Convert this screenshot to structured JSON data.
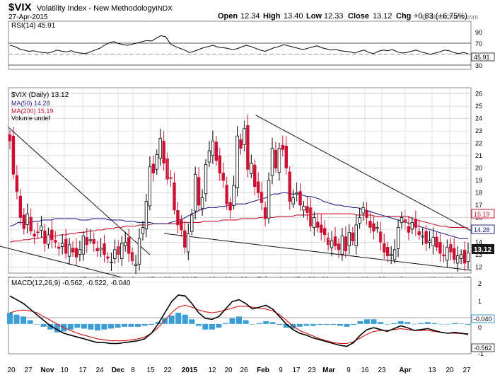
{
  "header": {
    "symbol": "$VIX",
    "name": "Volatility Index - New Methodology",
    "exchange": "INDX",
    "date": "27-Apr-2015",
    "watermark": "@ StockCharts.com",
    "ohlc": {
      "open_label": "Open",
      "open": "12.34",
      "high_label": "High",
      "high": "13.40",
      "low_label": "Low",
      "low": "12.33",
      "close_label": "Close",
      "close": "13.12",
      "chg_label": "Chg",
      "chg": "+0.83 (+6.75%)"
    }
  },
  "rsi": {
    "label": "RSI(14) 45.91",
    "value_tag": "45.91",
    "ticks": [
      "90",
      "70",
      "50",
      "30"
    ]
  },
  "price": {
    "legend": {
      "symbol": "$VIX (Daily) 13.12",
      "ma50": "MA(50) 14.28",
      "ma200": "MA(200) 15.19",
      "volume": "Volume undef"
    },
    "value_tags": {
      "ma200": "15.19",
      "ma50": "14.28",
      "close": "13.12"
    },
    "y_ticks": [
      "26",
      "25",
      "24",
      "23",
      "22",
      "21",
      "20",
      "19",
      "18",
      "17",
      "16",
      "15",
      "14",
      "13",
      "12"
    ]
  },
  "x_axis": {
    "labels": [
      "20",
      "27",
      "Nov",
      "10",
      "17",
      "24",
      "Dec",
      "8",
      "15",
      "22",
      "2015",
      "12",
      "20",
      "26",
      "Feb",
      "9",
      "17",
      "23",
      "Mar",
      "9",
      "16",
      "23",
      "Apr",
      "13",
      "20",
      "27"
    ]
  },
  "macd": {
    "label": "MACD(12,26,9) -0.562, -0.522, -0.040",
    "value_tags": {
      "hist": "-0.040",
      "macd": "-0.562"
    },
    "ticks": [
      "2",
      "1",
      "0",
      "-1"
    ]
  },
  "colors": {
    "up": "#ffffff",
    "down": "#cc1133",
    "ma50": "#22228a",
    "ma200": "#c8102e",
    "macd_line": "#000000",
    "signal_line": "#d01010",
    "histogram": "#3a9fd6",
    "close_tag": "#1a1a1a",
    "grid": "#c8c8c8"
  },
  "chart_data": [
    {
      "type": "candlestick",
      "title": "$VIX (Daily)",
      "ylim": [
        11.5,
        26.5
      ],
      "series": [
        {
          "name": "$VIX",
          "values": [
            22.2,
            19.5,
            18.1,
            16.0,
            15.1,
            16.3,
            14.9,
            14.5,
            14.8,
            15.3,
            13.9,
            14.6,
            14.2,
            14.0,
            13.5,
            13.9,
            13.1,
            13.8,
            13.2,
            12.8,
            13.4,
            14.5,
            13.8,
            14.2,
            13.9,
            13.3,
            13.5,
            13.0,
            12.7,
            12.4,
            13.4,
            13.0,
            13.9,
            14.0,
            13.1,
            12.5,
            12.2,
            14.3,
            15.2,
            17.3,
            20.1,
            19.6,
            21.1,
            22.4,
            20.4,
            19.1,
            19.2,
            16.6,
            15.4,
            15.0,
            13.6,
            14.7,
            16.2,
            19.5,
            17.0,
            17.6,
            20.3,
            21.4,
            22.2,
            20.6,
            19.6,
            19.0,
            17.1,
            16.6,
            18.6,
            22.6,
            21.6,
            23.2,
            19.9,
            20.4,
            18.5,
            18.0,
            17.2,
            15.9,
            19.0,
            21.6,
            20.0,
            21.6,
            21.5,
            20.0,
            17.3,
            17.6,
            18.0,
            17.0,
            16.9,
            16.4,
            15.3,
            16.0,
            15.2,
            14.8,
            14.6,
            13.8,
            14.1,
            13.7,
            13.4,
            14.5,
            13.3,
            14.8,
            14.1,
            15.4,
            16.0,
            16.8,
            16.0,
            15.2,
            14.9,
            15.2,
            14.0,
            13.2,
            12.9,
            13.0,
            13.4,
            15.2,
            16.0,
            15.6,
            14.8,
            15.6,
            15.2,
            14.6,
            14.5,
            13.9,
            14.1,
            14.4,
            13.6,
            13.1,
            12.9,
            13.6,
            13.2,
            12.6,
            12.9,
            13.0,
            12.3,
            13.12
          ]
        },
        {
          "name": "MA(50)",
          "values": [
            15.3,
            15.4,
            15.6,
            15.6,
            15.6,
            15.6,
            15.7,
            15.7,
            15.8,
            15.8,
            15.8,
            15.9,
            15.9,
            15.9,
            15.9,
            15.9,
            15.9,
            15.8,
            15.8,
            15.8,
            15.9,
            15.9,
            15.9,
            15.9,
            15.8,
            15.8,
            15.8,
            15.8,
            15.7,
            15.7,
            15.7,
            15.6,
            15.6,
            15.6,
            15.6,
            15.5,
            15.5,
            15.5,
            15.5,
            15.6,
            15.7,
            15.8,
            15.9,
            16.1,
            16.3,
            16.4,
            16.6,
            16.7,
            16.8,
            16.8,
            16.8,
            16.9,
            16.9,
            17.0,
            17.0,
            17.1,
            17.1,
            17.1,
            17.2,
            17.3,
            17.4,
            17.5,
            17.6,
            17.8,
            17.9,
            17.9,
            18.0,
            18.0,
            17.9,
            17.9,
            17.9,
            17.8,
            17.7,
            17.7,
            17.6,
            17.5,
            17.3,
            17.2,
            17.1,
            17.0,
            17.0,
            16.9,
            16.9,
            16.8,
            16.8,
            16.7,
            16.6,
            16.5,
            16.4,
            16.3,
            16.2,
            16.1,
            16.0,
            15.9,
            15.8,
            15.7,
            15.6,
            15.5,
            15.4,
            15.3,
            15.2,
            15.1,
            15.0,
            14.9,
            14.8,
            14.7,
            14.6,
            14.5,
            14.4,
            14.3,
            14.3,
            14.28
          ]
        },
        {
          "name": "MA(200)",
          "values": [
            14.0,
            14.1,
            14.1,
            14.2,
            14.2,
            14.3,
            14.3,
            14.4,
            14.4,
            14.5,
            14.5,
            14.6,
            14.6,
            14.7,
            14.7,
            14.8,
            14.8,
            14.9,
            14.9,
            15.0,
            15.0,
            15.1,
            15.1,
            15.2,
            15.2,
            15.3,
            15.3,
            15.3,
            15.4,
            15.4,
            15.4,
            15.5,
            15.5,
            15.5,
            15.5,
            15.5,
            15.5,
            15.6,
            15.6,
            15.6,
            15.6,
            15.6,
            15.7,
            15.7,
            15.7,
            15.7,
            15.8,
            15.8,
            15.8,
            15.8,
            15.9,
            15.9,
            15.9,
            15.9,
            16.0,
            16.0,
            16.0,
            16.0,
            16.1,
            16.1,
            16.1,
            16.1,
            16.2,
            16.2,
            16.2,
            16.2,
            16.3,
            16.3,
            16.3,
            16.3,
            16.3,
            16.3,
            16.3,
            16.3,
            16.3,
            16.2,
            16.2,
            16.2,
            16.2,
            16.1,
            16.1,
            16.1,
            16.1,
            16.1,
            16.1,
            16.1,
            16.1,
            15.9,
            15.8,
            15.7,
            15.6,
            15.5,
            15.4,
            15.3,
            15.3,
            15.2,
            15.2,
            15.2,
            15.2,
            15.19
          ]
        }
      ]
    },
    {
      "type": "line",
      "title": "RSI(14)",
      "ylim": [
        20,
        100
      ],
      "series": [
        {
          "name": "RSI(14)",
          "values": [
            60,
            58,
            54,
            52,
            50,
            51,
            49,
            48,
            47,
            49,
            52,
            50,
            49,
            51,
            48,
            47,
            46,
            49,
            52,
            55,
            60,
            64,
            66,
            63,
            61,
            60,
            62,
            64,
            66,
            68,
            67,
            72,
            76,
            74,
            62,
            58,
            55,
            52,
            48,
            50,
            53,
            56,
            58,
            60,
            57,
            56,
            55,
            53,
            54,
            57,
            60,
            58,
            55,
            52,
            50,
            53,
            56,
            58,
            61,
            59,
            57,
            55,
            53,
            55,
            57,
            59,
            56,
            54,
            52,
            53,
            51,
            50,
            49,
            47,
            50,
            52,
            48,
            46,
            50,
            52,
            51,
            53,
            49,
            47,
            48,
            50,
            52,
            49,
            47,
            45,
            47,
            49,
            52,
            51,
            48,
            46,
            48,
            45.91
          ]
        }
      ]
    },
    {
      "type": "bar+line",
      "title": "MACD(12,26,9)",
      "ylim": [
        -1.6,
        2.5
      ],
      "series": [
        {
          "name": "MACD",
          "values": [
            1.5,
            1.3,
            1.1,
            0.8,
            0.5,
            0.2,
            -0.1,
            -0.3,
            -0.5,
            -0.6,
            -0.7,
            -0.8,
            -0.9,
            -1.0,
            -1.0,
            -1.05,
            -1.05,
            -1.0,
            -0.95,
            -0.9,
            -0.8,
            -0.5,
            0.0,
            0.6,
            1.2,
            1.55,
            1.5,
            1.1,
            0.6,
            0.3,
            0.25,
            0.4,
            0.8,
            1.2,
            1.3,
            1.1,
            0.8,
            0.9,
            1.0,
            0.8,
            0.4,
            0.0,
            -0.3,
            -0.5,
            -0.6,
            -0.75,
            -0.85,
            -0.95,
            -1.05,
            -1.15,
            -1.2,
            -1.0,
            -0.6,
            -0.3,
            -0.2,
            -0.3,
            -0.4,
            -0.25,
            -0.1,
            -0.2,
            -0.35,
            -0.3,
            -0.25,
            -0.35,
            -0.45,
            -0.5,
            -0.45,
            -0.5,
            -0.562
          ]
        },
        {
          "name": "Signal",
          "values": [
            0.6,
            0.7,
            0.75,
            0.7,
            0.6,
            0.4,
            0.2,
            0.0,
            -0.2,
            -0.35,
            -0.5,
            -0.6,
            -0.7,
            -0.8,
            -0.85,
            -0.9,
            -0.9,
            -0.9,
            -0.85,
            -0.8,
            -0.7,
            -0.5,
            -0.2,
            0.2,
            0.6,
            0.9,
            1.0,
            0.9,
            0.75,
            0.65,
            0.6,
            0.65,
            0.75,
            0.85,
            0.95,
            0.95,
            0.9,
            0.85,
            0.8,
            0.7,
            0.5,
            0.2,
            -0.1,
            -0.35,
            -0.5,
            -0.65,
            -0.8,
            -0.9,
            -1.0,
            -1.05,
            -1.05,
            -0.95,
            -0.75,
            -0.55,
            -0.4,
            -0.35,
            -0.35,
            -0.3,
            -0.25,
            -0.3,
            -0.35,
            -0.35,
            -0.35,
            -0.4,
            -0.45,
            -0.5,
            -0.5,
            -0.52,
            -0.522
          ]
        },
        {
          "name": "Histogram",
          "values": [
            0.6,
            0.5,
            0.4,
            0.2,
            0.0,
            -0.15,
            -0.3,
            -0.45,
            -0.4,
            -0.3,
            -0.2,
            -0.25,
            -0.3,
            -0.35,
            -0.3,
            -0.25,
            -0.2,
            -0.15,
            -0.15,
            -0.15,
            -0.1,
            -0.05,
            0.1,
            0.3,
            0.45,
            0.6,
            0.5,
            0.25,
            -0.1,
            -0.3,
            -0.3,
            -0.2,
            0.05,
            0.3,
            0.4,
            0.2,
            0.0,
            0.05,
            0.15,
            0.1,
            -0.05,
            -0.2,
            -0.25,
            -0.15,
            -0.1,
            -0.1,
            -0.05,
            -0.05,
            -0.05,
            -0.1,
            -0.15,
            -0.05,
            0.15,
            0.25,
            0.25,
            0.1,
            0.0,
            0.05,
            0.15,
            0.1,
            0.0,
            0.05,
            0.1,
            0.05,
            0.0,
            0.0,
            0.05,
            0.02,
            -0.04
          ]
        }
      ]
    }
  ]
}
